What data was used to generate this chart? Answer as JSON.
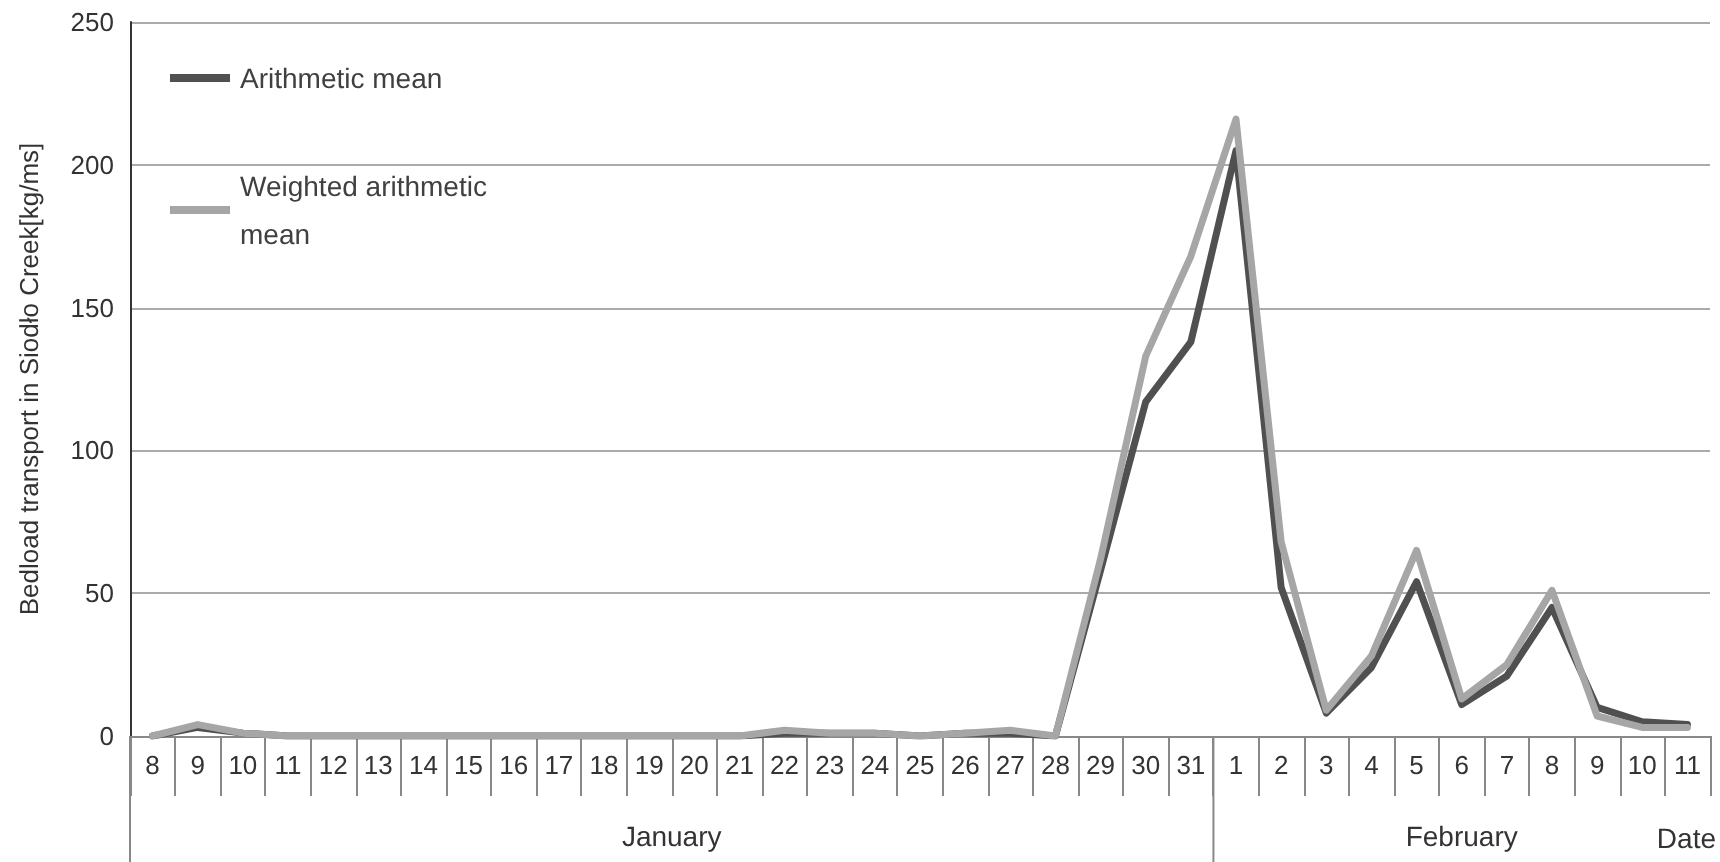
{
  "chart_data": {
    "type": "line",
    "ylabel": "Bedload transport in Siodło Creek[kg/ms]",
    "xlabel": "Date",
    "categories": [
      "8",
      "9",
      "10",
      "11",
      "12",
      "13",
      "14",
      "15",
      "16",
      "17",
      "18",
      "19",
      "20",
      "21",
      "22",
      "23",
      "24",
      "25",
      "26",
      "27",
      "28",
      "29",
      "30",
      "31",
      "1",
      "2",
      "3",
      "4",
      "5",
      "6",
      "7",
      "8",
      "9",
      "10",
      "11"
    ],
    "annotations": [
      "January",
      "February"
    ],
    "series": [
      {
        "name": "Arithmetic mean",
        "color": "#505050",
        "values": [
          0,
          3,
          1,
          0,
          0,
          0,
          0,
          0,
          0,
          0,
          0,
          0,
          0,
          0,
          1,
          1,
          1,
          0,
          1,
          1,
          0,
          58,
          117,
          138,
          205,
          52,
          8,
          24,
          54,
          11,
          21,
          45,
          10,
          5,
          4
        ]
      },
      {
        "name": "Weighted arithmetic mean",
        "color": "#a6a6a6",
        "values": [
          0,
          4,
          1,
          0,
          0,
          0,
          0,
          0,
          0,
          0,
          0,
          0,
          0,
          0,
          2,
          1,
          1,
          0,
          1,
          2,
          0,
          62,
          133,
          168,
          216,
          68,
          9,
          28,
          65,
          13,
          25,
          51,
          7,
          3,
          3
        ]
      }
    ],
    "ylim": [
      0,
      250
    ],
    "yticks": [
      0,
      50,
      100,
      150,
      200,
      250
    ],
    "grid": "y",
    "legend": "top left",
    "marker": "none",
    "line_style": "solid"
  }
}
